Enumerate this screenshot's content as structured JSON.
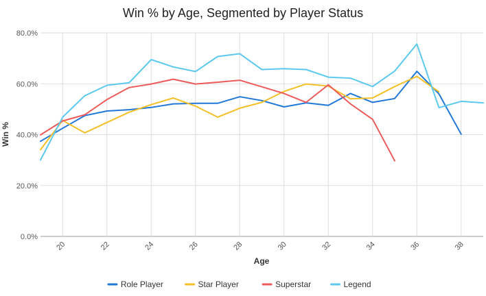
{
  "chart_data": {
    "type": "line",
    "title": "Win % by Age, Segmented by Player Status",
    "xlabel": "Age",
    "ylabel": "Win %",
    "xlim": [
      19,
      39
    ],
    "ylim": [
      0,
      0.8
    ],
    "x_ticks": [
      20,
      22,
      24,
      26,
      28,
      30,
      32,
      34,
      36,
      38
    ],
    "y_ticks": [
      0,
      0.2,
      0.4,
      0.6,
      0.8
    ],
    "y_tick_labels": [
      "0.0%",
      "20.0%",
      "40.0%",
      "60.0%",
      "80.0%"
    ],
    "grid": true,
    "legend_position": "bottom",
    "series": [
      {
        "name": "Role Player",
        "color": "#1f77d8",
        "x": [
          19,
          20,
          21,
          22,
          23,
          24,
          25,
          26,
          27,
          28,
          29,
          30,
          31,
          32,
          33,
          34,
          35,
          36,
          37,
          38
        ],
        "values": [
          0.374,
          0.425,
          0.475,
          0.493,
          0.498,
          0.507,
          0.521,
          0.523,
          0.523,
          0.549,
          0.534,
          0.509,
          0.525,
          0.515,
          0.562,
          0.527,
          0.542,
          0.649,
          0.56,
          0.402
        ]
      },
      {
        "name": "Star Player",
        "color": "#f5bf26",
        "x": [
          19,
          20,
          21,
          22,
          23,
          24,
          25,
          26,
          27,
          28,
          29,
          30,
          31,
          32,
          33,
          34,
          35,
          36,
          37
        ],
        "values": [
          0.341,
          0.456,
          0.407,
          0.448,
          0.488,
          0.518,
          0.544,
          0.512,
          0.469,
          0.504,
          0.527,
          0.57,
          0.599,
          0.591,
          0.541,
          0.544,
          0.589,
          0.629,
          0.568
        ]
      },
      {
        "name": "Superstar",
        "color": "#ec5a5a",
        "x": [
          19,
          20,
          21,
          22,
          23,
          24,
          25,
          26,
          27,
          28,
          29,
          30,
          31,
          32,
          33,
          34,
          35
        ],
        "values": [
          0.399,
          0.454,
          0.478,
          0.538,
          0.585,
          0.599,
          0.618,
          0.599,
          0.606,
          0.614,
          0.588,
          0.562,
          0.527,
          0.596,
          0.521,
          0.46,
          0.297
        ]
      },
      {
        "name": "Legend",
        "color": "#5bc8ef",
        "x": [
          19,
          20,
          21,
          22,
          23,
          24,
          25,
          26,
          27,
          28,
          29,
          30,
          31,
          32,
          33,
          34,
          35,
          36,
          37,
          38,
          39
        ],
        "values": [
          0.3,
          0.469,
          0.553,
          0.594,
          0.604,
          0.695,
          0.666,
          0.648,
          0.707,
          0.718,
          0.656,
          0.659,
          0.656,
          0.626,
          0.622,
          0.589,
          0.65,
          0.756,
          0.506,
          0.531,
          0.525
        ]
      }
    ]
  }
}
